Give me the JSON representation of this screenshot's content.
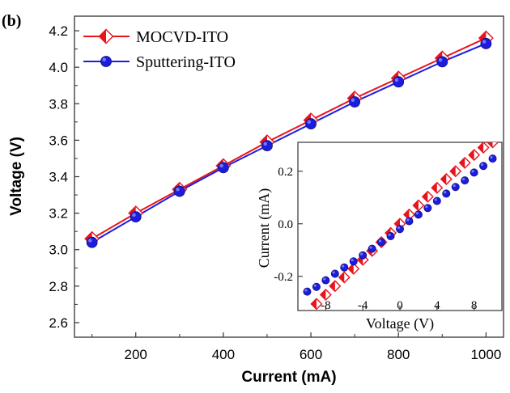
{
  "panel_label": "(b)",
  "chart_data": [
    {
      "type": "line",
      "role": "main",
      "xlabel": "Current (mA)",
      "ylabel": "Voltage (V)",
      "xlim": [
        60,
        1040
      ],
      "ylim": [
        2.52,
        4.28
      ],
      "xticks": [
        200,
        400,
        600,
        800,
        1000
      ],
      "yticks": [
        2.6,
        2.8,
        3.0,
        3.2,
        3.4,
        3.6,
        3.8,
        4.0,
        4.2
      ],
      "ytick_labels": [
        "2.6",
        "2.8",
        "3.0",
        "3.2",
        "3.4",
        "3.6",
        "3.8",
        "4.0",
        "4.2"
      ],
      "grid": false,
      "legend_position": "top-left",
      "x": [
        100,
        200,
        300,
        400,
        500,
        600,
        700,
        800,
        900,
        1000
      ],
      "series": [
        {
          "name": "MOCVD-ITO",
          "color": "#e8141c",
          "marker": "half-filled-diamond",
          "values": [
            3.06,
            3.2,
            3.33,
            3.46,
            3.59,
            3.71,
            3.83,
            3.94,
            4.05,
            4.16
          ]
        },
        {
          "name": "Sputtering-ITO",
          "color": "#1c1ce0",
          "marker": "circle",
          "values": [
            3.04,
            3.18,
            3.32,
            3.45,
            3.57,
            3.69,
            3.81,
            3.92,
            4.03,
            4.13
          ]
        }
      ]
    },
    {
      "type": "scatter",
      "role": "inset",
      "xlabel": "Voltage (V)",
      "ylabel": "Current (mA)",
      "xlim": [
        -11,
        11
      ],
      "ylim": [
        -0.33,
        0.31
      ],
      "xticks": [
        -8,
        -4,
        0,
        4,
        8
      ],
      "yticks": [
        -0.2,
        0.0,
        0.2
      ],
      "ytick_labels": [
        "-0.2",
        "0.0",
        "0.2"
      ],
      "grid": false,
      "series": [
        {
          "name": "MOCVD-ITO",
          "color": "#e8141c",
          "marker": "half-filled-diamond",
          "x": [
            -9,
            -8,
            -7,
            -6,
            -5,
            -4,
            -3,
            -2,
            -1,
            0,
            1,
            2,
            3,
            4,
            5,
            6,
            7,
            8,
            9,
            10
          ],
          "values": [
            -0.305,
            -0.27,
            -0.237,
            -0.204,
            -0.171,
            -0.137,
            -0.103,
            -0.07,
            -0.035,
            0.0,
            0.035,
            0.07,
            0.103,
            0.137,
            0.17,
            0.2,
            0.232,
            0.262,
            0.29,
            0.31
          ]
        },
        {
          "name": "Sputtering-ITO",
          "color": "#1c1ce0",
          "marker": "circle",
          "x": [
            -10,
            -9,
            -8,
            -7,
            -6,
            -5,
            -4,
            -3,
            -2,
            -1,
            0,
            1,
            2,
            3,
            4,
            5,
            6,
            7,
            8,
            9,
            10
          ],
          "values": [
            -0.258,
            -0.24,
            -0.215,
            -0.19,
            -0.166,
            -0.143,
            -0.12,
            -0.095,
            -0.07,
            -0.047,
            -0.02,
            0.01,
            0.035,
            0.06,
            0.087,
            0.115,
            0.14,
            0.165,
            0.195,
            0.22,
            0.248
          ]
        }
      ]
    }
  ]
}
